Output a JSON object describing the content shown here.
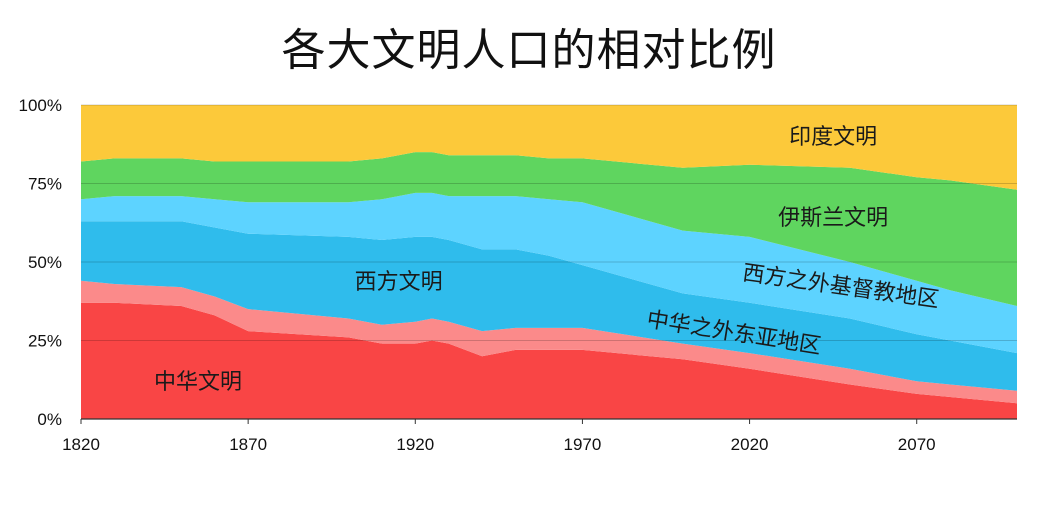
{
  "chart_data": {
    "type": "area",
    "stacked": true,
    "normalized": true,
    "title": "各大文明人口的相对比例",
    "xlabel": "",
    "ylabel": "",
    "xlim": [
      1820,
      2100
    ],
    "ylim": [
      0,
      100
    ],
    "x_ticks": [
      1820,
      1870,
      1920,
      1970,
      2020,
      2070
    ],
    "y_ticks": [
      0,
      25,
      50,
      75,
      100
    ],
    "y_tick_labels": [
      "0%",
      "25%",
      "50%",
      "75%",
      "100%"
    ],
    "x": [
      1820,
      1830,
      1850,
      1860,
      1870,
      1900,
      1910,
      1920,
      1925,
      1930,
      1940,
      1950,
      1960,
      1970,
      2000,
      2020,
      2050,
      2070,
      2080,
      2100
    ],
    "series": [
      {
        "name": "中华文明",
        "color": "#f94545",
        "values": [
          37,
          37,
          36,
          33,
          28,
          26,
          24,
          24,
          25,
          24,
          20,
          22,
          22,
          22,
          19,
          16,
          11,
          8,
          7,
          5
        ]
      },
      {
        "name": "中华之外东亚地区",
        "color": "#fb8a8a",
        "values": [
          7,
          6,
          6,
          6,
          7,
          6,
          6,
          7,
          7,
          7,
          8,
          7,
          7,
          7,
          5,
          5,
          5,
          4,
          4,
          4
        ]
      },
      {
        "name": "西方文明",
        "color": "#2fbcec",
        "values": [
          19,
          20,
          21,
          22,
          24,
          26,
          27,
          27,
          26,
          26,
          26,
          25,
          23,
          20,
          16,
          16,
          16,
          15,
          14,
          12
        ]
      },
      {
        "name": "西方之外基督教地区",
        "color": "#5dd3ff",
        "values": [
          7,
          8,
          8,
          9,
          10,
          11,
          13,
          14,
          14,
          14,
          17,
          17,
          18,
          20,
          20,
          21,
          18,
          17,
          16,
          15
        ]
      },
      {
        "name": "伊斯兰文明",
        "color": "#5fd55f",
        "values": [
          12,
          12,
          12,
          12,
          13,
          13,
          13,
          13,
          13,
          13,
          13,
          13,
          13,
          14,
          20,
          23,
          30,
          33,
          35,
          37
        ]
      },
      {
        "name": "印度文明",
        "color": "#fcc93a",
        "values": [
          18,
          17,
          17,
          18,
          18,
          18,
          17,
          15,
          15,
          16,
          16,
          16,
          17,
          17,
          20,
          19,
          20,
          23,
          24,
          27
        ]
      }
    ],
    "labels": [
      {
        "series": "中华文明",
        "text": "中华文明"
      },
      {
        "series": "中华之外东亚地区",
        "text": "中华之外东亚地区"
      },
      {
        "series": "西方文明",
        "text": "西方文明"
      },
      {
        "series": "西方之外基督教地区",
        "text": "西方之外基督教地区"
      },
      {
        "series": "伊斯兰文明",
        "text": "伊斯兰文明"
      },
      {
        "series": "印度文明",
        "text": "印度文明"
      }
    ]
  }
}
